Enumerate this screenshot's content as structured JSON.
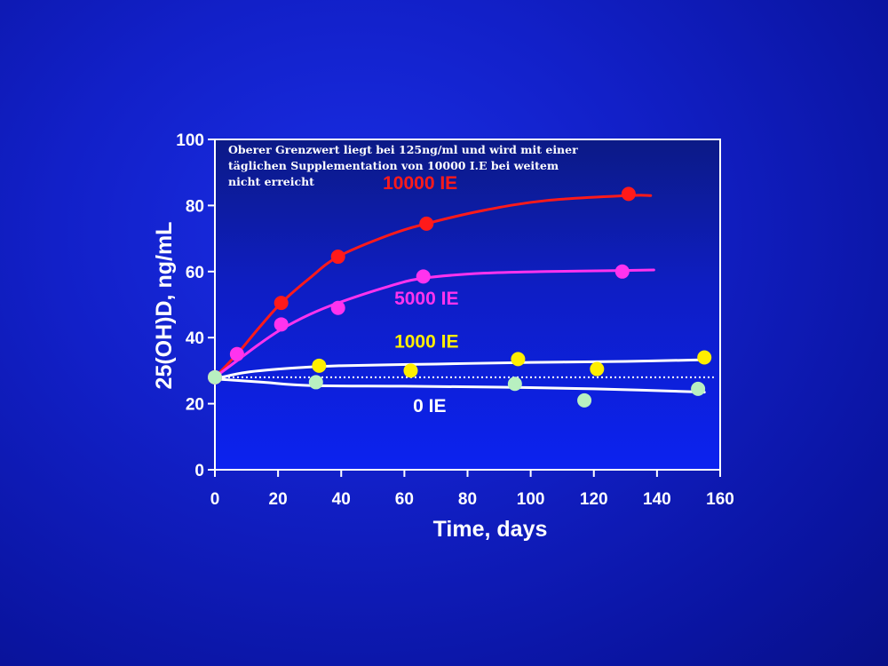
{
  "chart_data": {
    "type": "line",
    "xlabel": "Time, days",
    "ylabel": "25(OH)D, ng/mL",
    "xlim": [
      0,
      160
    ],
    "ylim": [
      0,
      100
    ],
    "xticks": [
      0,
      20,
      40,
      60,
      80,
      100,
      120,
      140,
      160
    ],
    "yticks": [
      0,
      20,
      40,
      60,
      80,
      100
    ],
    "grid": false,
    "annotation": [
      "Oberer Grenzwert liegt bei 125ng/ml und wird mit einer",
      "täglichen Supplementation von 10000 I.E bei weitem",
      "nicht erreicht"
    ],
    "baseline": {
      "y": 28,
      "style": "dotted"
    },
    "series": [
      {
        "name": "10000 IE",
        "color": "#ff1a1a",
        "label_pos": [
          65,
          85
        ],
        "points": [
          [
            0,
            28
          ],
          [
            7,
            35
          ],
          [
            21,
            50.5
          ],
          [
            39,
            64.5
          ],
          [
            67,
            74.5
          ],
          [
            131,
            83.5
          ]
        ],
        "curve": [
          [
            0,
            28
          ],
          [
            7,
            35
          ],
          [
            14,
            43
          ],
          [
            21,
            50.5
          ],
          [
            30,
            58
          ],
          [
            39,
            64.5
          ],
          [
            55,
            71
          ],
          [
            67,
            74.5
          ],
          [
            85,
            78.5
          ],
          [
            105,
            81.5
          ],
          [
            131,
            83
          ],
          [
            138,
            83
          ]
        ]
      },
      {
        "name": "5000 IE",
        "color": "#ff33ee",
        "label_pos": [
          67,
          50
        ],
        "points": [
          [
            0,
            28
          ],
          [
            7,
            35
          ],
          [
            21,
            44
          ],
          [
            39,
            49
          ],
          [
            66,
            58.5
          ],
          [
            129,
            60
          ]
        ],
        "curve": [
          [
            0,
            28
          ],
          [
            7,
            33
          ],
          [
            14,
            38
          ],
          [
            21,
            42.5
          ],
          [
            30,
            47
          ],
          [
            39,
            50.5
          ],
          [
            55,
            55.5
          ],
          [
            66,
            58
          ],
          [
            85,
            59.5
          ],
          [
            105,
            60
          ],
          [
            129,
            60.3
          ],
          [
            139,
            60.5
          ]
        ]
      },
      {
        "name": "1000 IE",
        "color": "#ffee00",
        "line_color": "#ffffff",
        "label_pos": [
          67,
          37
        ],
        "points": [
          [
            33,
            31.5
          ],
          [
            62,
            30
          ],
          [
            96,
            33.5
          ],
          [
            121,
            30.5
          ],
          [
            155,
            34
          ]
        ],
        "curve": [
          [
            0,
            27.5
          ],
          [
            10,
            29.5
          ],
          [
            25,
            30.8
          ],
          [
            40,
            31.5
          ],
          [
            70,
            32
          ],
          [
            100,
            32.5
          ],
          [
            130,
            32.8
          ],
          [
            155,
            33.3
          ]
        ]
      },
      {
        "name": "0 IE",
        "color": "#b8f0c0",
        "line_color": "#ffffff",
        "label_pos": [
          68,
          17.5
        ],
        "points": [
          [
            0,
            28
          ],
          [
            32,
            26.5
          ],
          [
            95,
            26
          ],
          [
            117,
            21
          ],
          [
            153,
            24.5
          ]
        ],
        "curve": [
          [
            0,
            27.5
          ],
          [
            15,
            26.5
          ],
          [
            30,
            25.5
          ],
          [
            60,
            25.3
          ],
          [
            90,
            25
          ],
          [
            120,
            24.5
          ],
          [
            155,
            23.5
          ]
        ]
      }
    ]
  }
}
